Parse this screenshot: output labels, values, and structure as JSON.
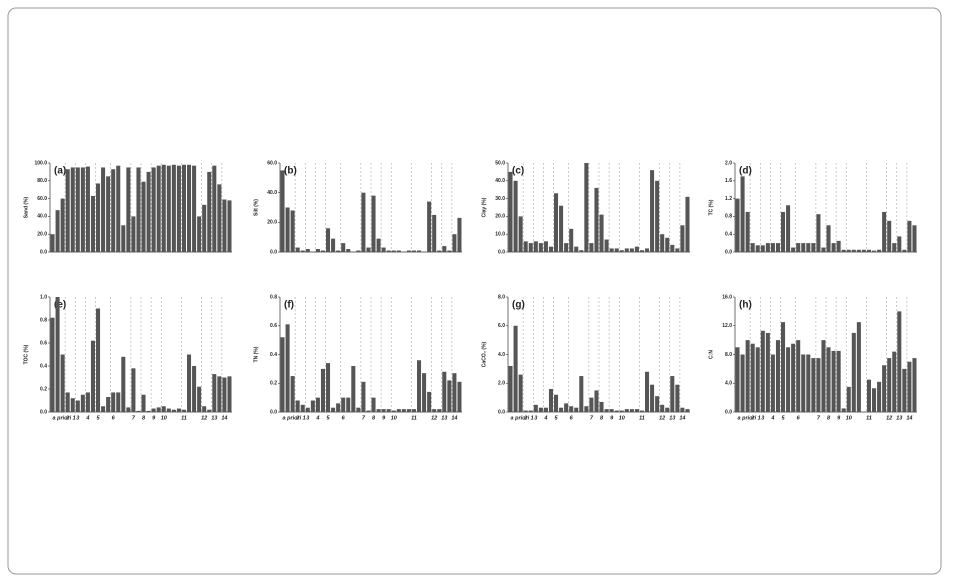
{
  "chart_data": [
    {
      "type": "bar",
      "title": "(a)",
      "y_label": "Sand (%)",
      "color": "#555555",
      "values": [
        20,
        47,
        60,
        93,
        95,
        95,
        95,
        96,
        63,
        77,
        95,
        85,
        93,
        97,
        30,
        95,
        40,
        95,
        79,
        90,
        95,
        97,
        98,
        97,
        98,
        97,
        98,
        98,
        97,
        40,
        53,
        90,
        97,
        76,
        59,
        58
      ],
      "ylim": [
        0,
        100
      ],
      "yticks": [
        {
          "value": 0,
          "label": "0.0"
        },
        {
          "value": 20,
          "label": "20.0"
        },
        {
          "value": 40,
          "label": "40.0"
        },
        {
          "value": 60,
          "label": "60.0"
        },
        {
          "value": 80,
          "label": "80.0"
        },
        {
          "value": 100,
          "label": "100.0"
        }
      ]
    },
    {
      "type": "bar",
      "title": "(b)",
      "y_label": "Silt (%)",
      "color": "#555555",
      "values": [
        55,
        30,
        28,
        3,
        1,
        2,
        0,
        2,
        1,
        16,
        9,
        1,
        6,
        2,
        0,
        1,
        40,
        3,
        38,
        9,
        3,
        1,
        1,
        1,
        0,
        1,
        1,
        1,
        0,
        34,
        25,
        1,
        4,
        1,
        12,
        23
      ],
      "ylim": [
        0,
        60
      ],
      "yticks": [
        {
          "value": 0,
          "label": "0.0"
        },
        {
          "value": 20,
          "label": "20.0"
        },
        {
          "value": 40,
          "label": "40.0"
        },
        {
          "value": 60,
          "label": "60.0"
        }
      ]
    },
    {
      "type": "bar",
      "title": "(c)",
      "y_label": "Clay (%)",
      "color": "#555555",
      "values": [
        45,
        40,
        20,
        6,
        5,
        6,
        5,
        6,
        3,
        33,
        26,
        5,
        13,
        3,
        1,
        50,
        5,
        36,
        21,
        7,
        2,
        2,
        1,
        2,
        2,
        3,
        1,
        2,
        46,
        40,
        10,
        8,
        4,
        2,
        15,
        31
      ],
      "ylim": [
        0,
        50
      ],
      "yticks": [
        {
          "value": 0,
          "label": "0.0"
        },
        {
          "value": 10,
          "label": "10.0"
        },
        {
          "value": 20,
          "label": "20.0"
        },
        {
          "value": 30,
          "label": "30.0"
        },
        {
          "value": 40,
          "label": "40.0"
        },
        {
          "value": 50,
          "label": "50.0"
        }
      ]
    },
    {
      "type": "bar",
      "title": "(d)",
      "y_label": "TC (%)",
      "color": "#555555",
      "values": [
        1.2,
        1.7,
        0.9,
        0.2,
        0.15,
        0.15,
        0.2,
        0.2,
        0.2,
        0.9,
        1.05,
        0.1,
        0.2,
        0.2,
        0.2,
        0.2,
        0.85,
        0.1,
        0.6,
        0.2,
        0.25,
        0.05,
        0.05,
        0.05,
        0.05,
        0.05,
        0.05,
        0.03,
        0.05,
        0.9,
        0.7,
        0.2,
        0.35,
        0.05,
        0.7,
        0.6
      ],
      "ylim": [
        0,
        2
      ],
      "yticks": [
        {
          "value": 0,
          "label": "0.0"
        },
        0.4,
        0.8,
        1.2,
        1.6,
        {
          "value": 2,
          "label": "2.0"
        }
      ]
    },
    {
      "type": "bar",
      "title": "(e)",
      "y_label": "TOC (%)",
      "color": "#555555",
      "categories": [
        "a priori 1",
        null,
        null,
        "2",
        null,
        "3",
        null,
        "4",
        null,
        "5",
        null,
        null,
        "6",
        null,
        null,
        null,
        "7",
        null,
        "8",
        null,
        "9",
        null,
        "10",
        null,
        null,
        null,
        "11",
        null,
        null,
        null,
        "12",
        null,
        "13",
        null,
        "14",
        null
      ],
      "values": [
        0.82,
        1.0,
        0.5,
        0.17,
        0.12,
        0.1,
        0.15,
        0.17,
        0.62,
        0.9,
        0.05,
        0.13,
        0.17,
        0.17,
        0.48,
        0.04,
        0.38,
        0.01,
        0.15,
        0.01,
        0.03,
        0.04,
        0.05,
        0.03,
        0.02,
        0.03,
        0.02,
        0.5,
        0.4,
        0.22,
        0.05,
        0.02,
        0.33,
        0.31,
        0.3,
        0.31
      ],
      "ylim": [
        0,
        1
      ],
      "yticks": [
        {
          "value": 0,
          "label": "0.0"
        },
        0.2,
        0.4,
        0.6,
        0.8,
        {
          "value": 1,
          "label": "1.0"
        }
      ]
    },
    {
      "type": "bar",
      "title": "(f)",
      "y_label": "TN (%)",
      "color": "#555555",
      "categories": [
        "a priori 1",
        null,
        null,
        "2",
        null,
        "3",
        null,
        "4",
        null,
        "5",
        null,
        null,
        "6",
        null,
        null,
        null,
        "7",
        null,
        "8",
        null,
        "9",
        null,
        "10",
        null,
        null,
        null,
        "11",
        null,
        null,
        null,
        "12",
        null,
        "13",
        null,
        "14",
        null
      ],
      "values": [
        0.52,
        0.61,
        0.25,
        0.08,
        0.05,
        0.03,
        0.08,
        0.1,
        0.3,
        0.34,
        0.03,
        0.06,
        0.1,
        0.1,
        0.32,
        0.03,
        0.21,
        0.01,
        0.1,
        0.02,
        0.02,
        0.02,
        0.01,
        0.02,
        0.02,
        0.02,
        0.02,
        0.36,
        0.27,
        0.14,
        0.02,
        0.02,
        0.28,
        0.22,
        0.27,
        0.21
      ],
      "ylim": [
        0,
        0.8
      ],
      "yticks": [
        {
          "value": 0,
          "label": "0.0"
        },
        0.2,
        0.4,
        0.6,
        0.8
      ]
    },
    {
      "type": "bar",
      "title": "(g)",
      "y_label": "CaCO₃ (%)",
      "color": "#555555",
      "categories": [
        "a priori 1",
        null,
        null,
        "2",
        null,
        "3",
        null,
        "4",
        null,
        "5",
        null,
        null,
        "6",
        null,
        null,
        null,
        "7",
        null,
        "8",
        null,
        "9",
        null,
        "10",
        null,
        null,
        null,
        "11",
        null,
        null,
        null,
        "12",
        null,
        "13",
        null,
        "14",
        null
      ],
      "values": [
        3.2,
        6.0,
        2.6,
        0.1,
        0.1,
        0.5,
        0.3,
        0.3,
        1.6,
        1.2,
        0.3,
        0.6,
        0.4,
        0.3,
        2.5,
        0.4,
        1.0,
        1.5,
        0.7,
        0.2,
        0.2,
        0.1,
        0.1,
        0.2,
        0.2,
        0.2,
        0.1,
        2.8,
        1.9,
        1.1,
        0.5,
        0.3,
        2.5,
        1.9,
        0.3,
        0.2
      ],
      "ylim": [
        0,
        8
      ],
      "yticks": [
        {
          "value": 0,
          "label": "0.0"
        },
        {
          "value": 2,
          "label": "2.0"
        },
        {
          "value": 4,
          "label": "4.0"
        },
        {
          "value": 6,
          "label": "6.0"
        },
        {
          "value": 8,
          "label": "8.0"
        }
      ]
    },
    {
      "type": "bar",
      "title": "(h)",
      "y_label": "C:N",
      "color": "#555555",
      "categories": [
        "a priori 1",
        null,
        null,
        "2",
        null,
        "3",
        null,
        "4",
        null,
        "5",
        null,
        null,
        "6",
        null,
        null,
        null,
        "7",
        null,
        "8",
        null,
        "9",
        null,
        "10",
        null,
        null,
        null,
        "11",
        null,
        null,
        null,
        "12",
        null,
        "13",
        null,
        "14",
        null
      ],
      "values": [
        9,
        8,
        10,
        9.5,
        9,
        11.3,
        11,
        8,
        10,
        12.5,
        9,
        9.5,
        10,
        8,
        8,
        7.5,
        7.5,
        10,
        9,
        8.5,
        8.5,
        0.5,
        3.5,
        11,
        12.5,
        0,
        4.5,
        3.3,
        4.2,
        6.5,
        7.5,
        8.4,
        14,
        6,
        7,
        7.5
      ],
      "ylim": [
        0,
        16
      ],
      "yticks": [
        {
          "value": 0,
          "label": "0.0"
        },
        {
          "value": 4,
          "label": "4.0"
        },
        {
          "value": 8,
          "label": "8.0"
        },
        {
          "value": 12,
          "label": "12.0"
        },
        {
          "value": 16,
          "label": "16.0"
        }
      ]
    }
  ]
}
